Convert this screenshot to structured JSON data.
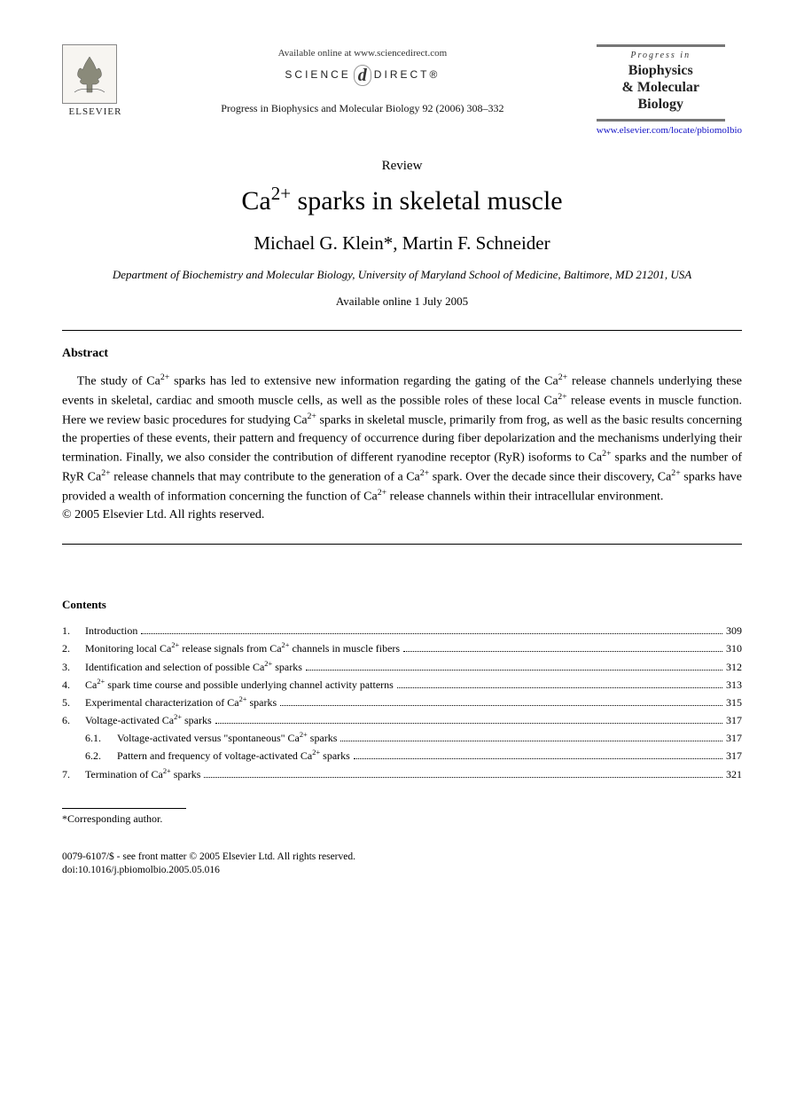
{
  "header": {
    "publisher_name": "ELSEVIER",
    "available_online_text": "Available online at www.sciencedirect.com",
    "science_direct_label": "SCIENCE DIRECT®",
    "journal_reference": "Progress in Biophysics and Molecular Biology 92 (2006) 308–332",
    "journal_box": {
      "progress_in": "Progress in",
      "title_line1": "Biophysics",
      "title_line2": "& Molecular",
      "title_line3": "Biology"
    },
    "journal_url": "www.elsevier.com/locate/pbiomolbio"
  },
  "article": {
    "type": "Review",
    "title_html": "Ca²⁺ sparks in skeletal muscle",
    "authors": "Michael G. Klein*, Martin F. Schneider",
    "affiliation": "Department of Biochemistry and Molecular Biology, University of Maryland School of Medicine, Baltimore, MD 21201, USA",
    "available_online_date": "Available online 1 July 2005"
  },
  "abstract": {
    "heading": "Abstract",
    "body": "The study of Ca²⁺ sparks has led to extensive new information regarding the gating of the Ca²⁺ release channels underlying these events in skeletal, cardiac and smooth muscle cells, as well as the possible roles of these local Ca²⁺ release events in muscle function. Here we review basic procedures for studying Ca²⁺ sparks in skeletal muscle, primarily from frog, as well as the basic results concerning the properties of these events, their pattern and frequency of occurrence during fiber depolarization and the mechanisms underlying their termination. Finally, we also consider the contribution of different ryanodine receptor (RyR) isoforms to Ca²⁺ sparks and the number of RyR Ca²⁺ release channels that may contribute to the generation of a Ca²⁺ spark. Over the decade since their discovery, Ca²⁺ sparks have provided a wealth of information concerning the function of Ca²⁺ release channels within their intracellular environment.",
    "copyright": "© 2005 Elsevier Ltd. All rights reserved."
  },
  "contents": {
    "heading": "Contents",
    "items": [
      {
        "num": "1.",
        "label": "Introduction",
        "page": "309"
      },
      {
        "num": "2.",
        "label": "Monitoring local Ca²⁺ release signals from Ca²⁺ channels in muscle fibers",
        "page": "310"
      },
      {
        "num": "3.",
        "label": "Identification and selection of possible Ca²⁺ sparks",
        "page": "312"
      },
      {
        "num": "4.",
        "label": "Ca²⁺ spark time course and possible underlying channel activity patterns",
        "page": "313"
      },
      {
        "num": "5.",
        "label": "Experimental characterization of Ca²⁺ sparks",
        "page": "315"
      },
      {
        "num": "6.",
        "label": "Voltage-activated Ca²⁺ sparks",
        "page": "317"
      },
      {
        "num": "6.1.",
        "label": "Voltage-activated versus \"spontaneous\" Ca²⁺ sparks",
        "page": "317",
        "sub": true
      },
      {
        "num": "6.2.",
        "label": "Pattern and frequency of voltage-activated Ca²⁺ sparks",
        "page": "317",
        "sub": true
      },
      {
        "num": "7.",
        "label": "Termination of Ca²⁺ sparks",
        "page": "321"
      }
    ]
  },
  "footnote": {
    "text": "*Corresponding author."
  },
  "footer": {
    "front_matter": "0079-6107/$ - see front matter © 2005 Elsevier Ltd. All rights reserved.",
    "doi": "doi:10.1016/j.pbiomolbio.2005.05.016"
  },
  "colors": {
    "text": "#000000",
    "link": "#1010c5",
    "rule": "#000000",
    "logo_border": "#888888",
    "background": "#ffffff"
  },
  "typography": {
    "body_font": "Times New Roman",
    "title_fontsize_pt": 22,
    "authors_fontsize_pt": 16,
    "body_fontsize_pt": 11,
    "toc_fontsize_pt": 9
  }
}
